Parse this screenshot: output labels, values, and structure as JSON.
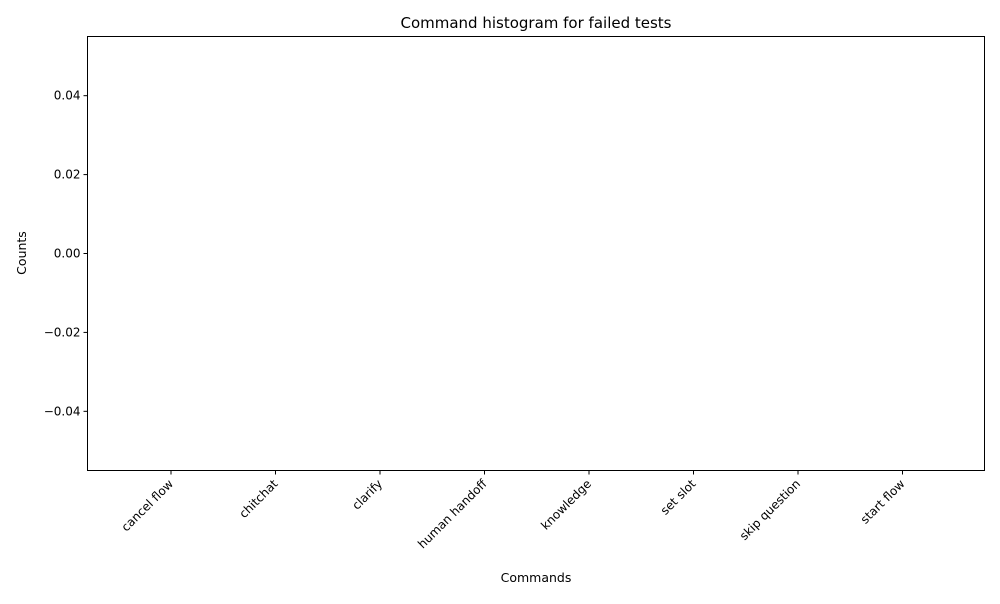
{
  "chart_data": {
    "type": "bar",
    "title": "Command histogram for failed tests",
    "xlabel": "Commands",
    "ylabel": "Counts",
    "categories": [
      "cancel flow",
      "chitchat",
      "clarify",
      "human handoff",
      "knowledge",
      "set slot",
      "skip question",
      "start flow"
    ],
    "values": [
      0,
      0,
      0,
      0,
      0,
      0,
      0,
      0
    ],
    "ylim": [
      -0.055,
      0.055
    ],
    "yticks": [
      -0.04,
      -0.02,
      0.0,
      0.02,
      0.04
    ],
    "ytick_labels": [
      "−0.04",
      "−0.02",
      "0.00",
      "0.02",
      "0.04"
    ],
    "grid": false,
    "legend": "none"
  }
}
